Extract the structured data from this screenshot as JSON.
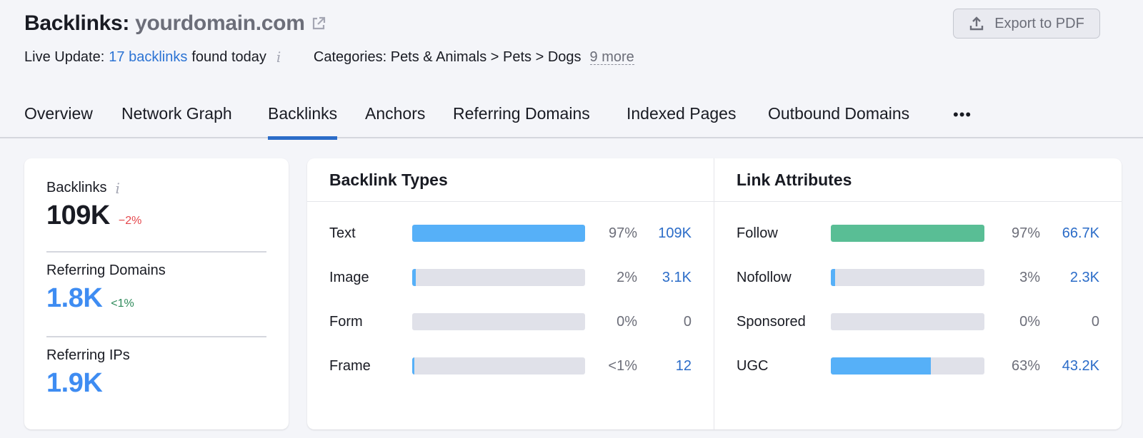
{
  "header": {
    "title_prefix": "Backlinks:",
    "domain": "yourdomain.com",
    "live_update_label": "Live Update:",
    "live_update_link": "17 backlinks",
    "live_update_suffix": "found today",
    "categories_text": "Categories: Pets & Animals > Pets > Dogs",
    "categories_more": "9 more",
    "export_button": "Export to PDF",
    "icons": {
      "external_link": "external-link-icon",
      "info": "info-icon",
      "export": "upload-icon"
    }
  },
  "tabs": [
    {
      "label": "Overview",
      "active": false
    },
    {
      "label": "Network Graph",
      "active": false
    },
    {
      "label": "Backlinks",
      "active": true
    },
    {
      "label": "Anchors",
      "active": false
    },
    {
      "label": "Referring Domains",
      "active": false
    },
    {
      "label": "Indexed Pages",
      "active": false
    },
    {
      "label": "Outbound Domains",
      "active": false
    }
  ],
  "tabs_more": "•••",
  "summary": {
    "metrics": [
      {
        "label": "Backlinks",
        "value": "109K",
        "delta": "−2%",
        "delta_type": "negative",
        "has_info": true
      },
      {
        "label": "Referring Domains",
        "value": "1.8K",
        "delta": "<1%",
        "delta_type": "positive",
        "has_info": false
      },
      {
        "label": "Referring IPs",
        "value": "1.9K",
        "delta": "",
        "delta_type": "none",
        "has_info": false
      }
    ]
  },
  "backlink_types": {
    "title": "Backlink Types",
    "rows": [
      {
        "label": "Text",
        "percent": "97%",
        "count": "109K",
        "fill": 100,
        "color": "#56b0f8"
      },
      {
        "label": "Image",
        "percent": "2%",
        "count": "3.1K",
        "fill": 2,
        "color": "#56b0f8"
      },
      {
        "label": "Form",
        "percent": "0%",
        "count": "0",
        "fill": 0,
        "color": "#56b0f8"
      },
      {
        "label": "Frame",
        "percent": "<1%",
        "count": "12",
        "fill": 0.8,
        "color": "#56b0f8"
      }
    ]
  },
  "link_attributes": {
    "title": "Link Attributes",
    "rows": [
      {
        "label": "Follow",
        "percent": "97%",
        "count": "66.7K",
        "fill": 100,
        "color": "#59be95"
      },
      {
        "label": "Nofollow",
        "percent": "3%",
        "count": "2.3K",
        "fill": 3,
        "color": "#56b0f8"
      },
      {
        "label": "Sponsored",
        "percent": "0%",
        "count": "0",
        "fill": 0,
        "color": "#56b0f8"
      },
      {
        "label": "UGC",
        "percent": "63%",
        "count": "43.2K",
        "fill": 65,
        "color": "#56b0f8"
      }
    ]
  },
  "colors": {
    "accent_blue": "#2b6cc8",
    "metric_blue": "#3e8cf2",
    "bar_blue": "#56b0f8",
    "bar_green": "#59be95",
    "track": "#e0e1e9",
    "negative": "#e5484d",
    "positive": "#2e8a5a"
  }
}
